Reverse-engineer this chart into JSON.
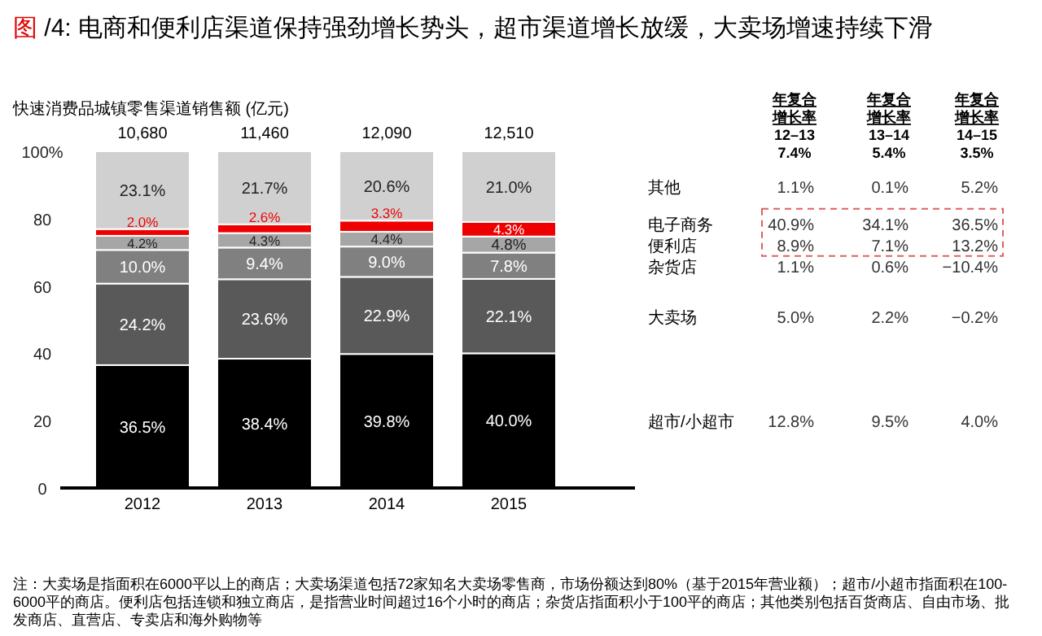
{
  "chart_data": [
    {
      "type": "bar",
      "title": "图 /4: 电商和便利店渠道保持强劲增长势头，超市渠道增长放缓，大卖场增速持续下滑",
      "subtitle": "快速消费品城镇零售渠道销售额 (亿元)",
      "categories": [
        "2012",
        "2013",
        "2014",
        "2015"
      ],
      "stacked": true,
      "legend": false,
      "grid": false,
      "ylim": [
        0,
        100
      ],
      "yticks": [
        0,
        20,
        40,
        60,
        80,
        {
          "value": 100,
          "label": "100%"
        }
      ],
      "series": [
        {
          "name": "超市/小超市",
          "color": "#000000",
          "values": [
            36.5,
            38.4,
            39.8,
            40.0
          ],
          "value_labels": [
            "36.5%",
            "38.4%",
            "39.8%",
            "40.0%"
          ]
        },
        {
          "name": "大卖场",
          "color": "#595959",
          "values": [
            24.2,
            23.6,
            22.9,
            22.1
          ],
          "value_labels": [
            "24.2%",
            "23.6%",
            "22.9%",
            "22.1%"
          ]
        },
        {
          "name": "杂货店",
          "color": "#808080",
          "values": [
            10.0,
            9.4,
            9.0,
            7.8
          ],
          "value_labels": [
            "10.0%",
            "9.4%",
            "9.0%",
            "7.8%"
          ]
        },
        {
          "name": "便利店",
          "color": "#a6a6a6",
          "values": [
            4.2,
            4.3,
            4.4,
            4.8
          ],
          "value_labels": [
            "4.2%",
            "4.3%",
            "4.4%",
            "4.8%"
          ]
        },
        {
          "name": "电子商务",
          "color": "#ee0000",
          "values": [
            2.0,
            2.6,
            3.3,
            4.3
          ],
          "value_labels": [
            "2.0%",
            "2.6%",
            "3.3%",
            "4.3%"
          ]
        },
        {
          "name": "其他",
          "color": "#d0d0d0",
          "values": [
            23.1,
            21.7,
            20.6,
            21.0
          ],
          "value_labels": [
            "23.1%",
            "21.7%",
            "20.6%",
            "21.0%"
          ]
        }
      ],
      "annotations": [
        {
          "text": "10,680",
          "x": "2012",
          "y": 100
        },
        {
          "text": "11,460",
          "x": "2013",
          "y": 100
        },
        {
          "text": "12,090",
          "x": "2014",
          "y": 100
        },
        {
          "text": "12,510",
          "x": "2015",
          "y": 100
        },
        "注：大卖场是指面积在6000平以上的商店；大卖场渠道包括72家知名大卖场零售商，市场份额达到80%（基于2015年营业额）；超市/小超市指面积在100-6000平的商店。便利店包括连锁和独立商店，是指营业时间超过16个小时的商店；杂货店指面积小于100平的商店；其他类别包括百货商店、自由市场、批发商店、直营店、专卖店和海外购物等"
      ]
    },
    {
      "type": "other",
      "annotations": [
        "年复合",
        "增长率",
        "12–13",
        "7.4%",
        "年复合",
        "增长率",
        "13–14",
        "5.4%",
        "年复合",
        "增长率",
        "14–15",
        "3.5%",
        "12.8%",
        "9.5%",
        "4.0%",
        "5.0%",
        "2.2%",
        "−0.2%",
        "1.1%",
        "0.6%",
        "−10.4%",
        "8.9%",
        "7.1%",
        "13.2%",
        "40.9%",
        "34.1%",
        "36.5%",
        "1.1%",
        "0.1%",
        "5.2%"
      ]
    }
  ]
}
